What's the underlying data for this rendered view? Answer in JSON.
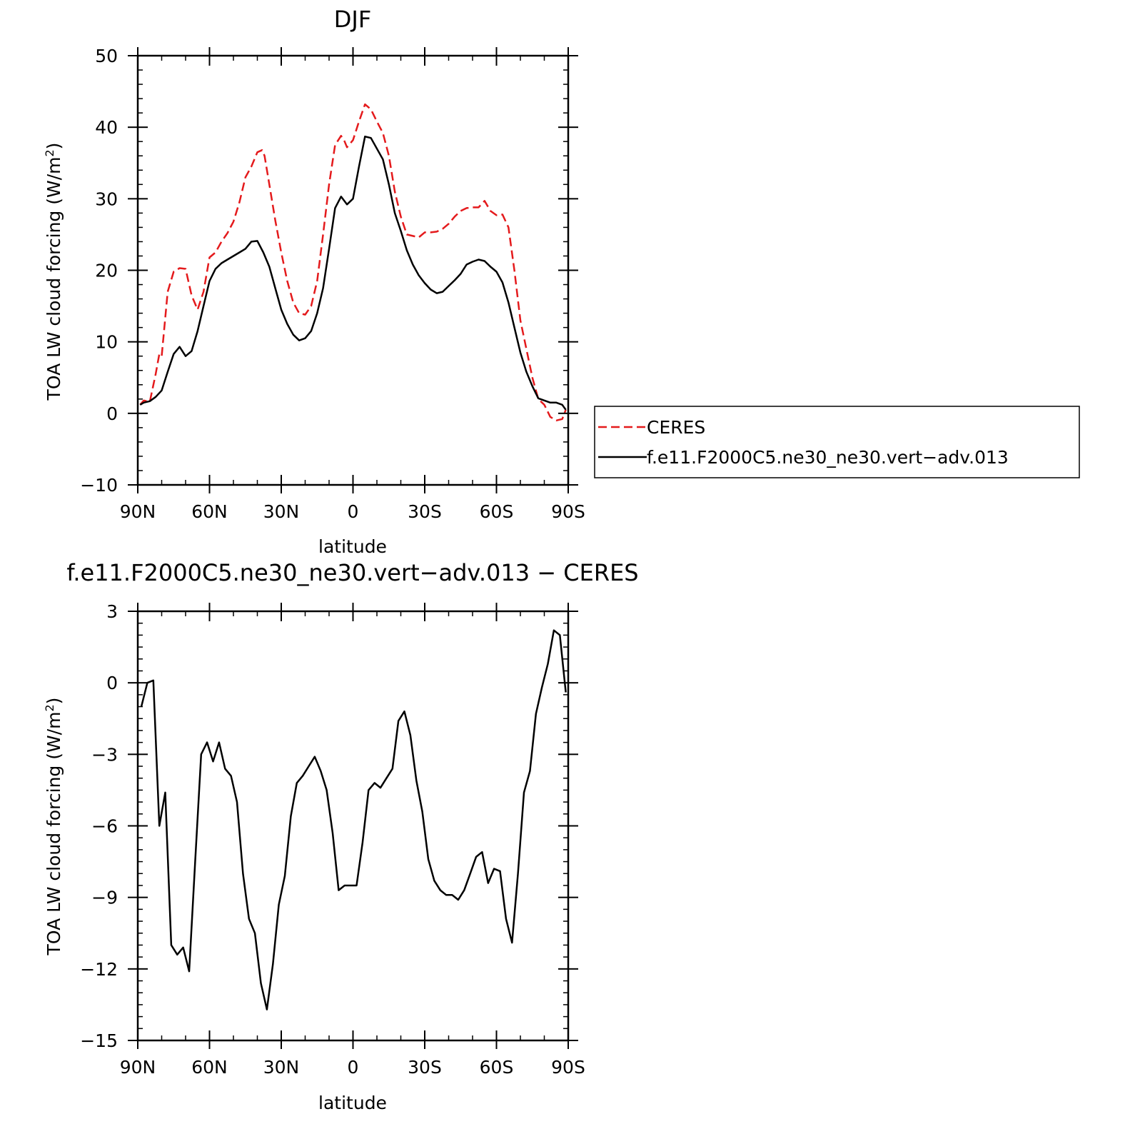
{
  "chart_data": [
    {
      "type": "line",
      "title": "DJF",
      "xlabel": "latitude",
      "ylabel": "TOA LW cloud forcing (W/m",
      "ylabel_sup": "2",
      "ylabel_close": ")",
      "xlim": [
        90,
        -90
      ],
      "ylim": [
        -10,
        50
      ],
      "x_ticks": [
        90,
        60,
        30,
        0,
        -30,
        -60,
        -90
      ],
      "x_tick_labels": [
        "90N",
        "60N",
        "30N",
        "0",
        "30S",
        "60S",
        "90S"
      ],
      "y_ticks": [
        -10,
        0,
        10,
        20,
        30,
        40,
        50
      ],
      "y_tick_labels": [
        "−10",
        "0",
        "10",
        "20",
        "30",
        "40",
        "50"
      ],
      "legend": {
        "placement": "right",
        "entries": [
          "CERES",
          "f.e11.F2000C5.ne30_ne30.vert−adv.013"
        ]
      },
      "series": [
        {
          "name": "CERES",
          "color": "#e41a1c",
          "dash": true,
          "x": [
            89,
            87.5,
            85,
            82.5,
            81,
            80,
            77.5,
            75,
            72.5,
            70,
            67.5,
            65,
            62.5,
            60,
            57.5,
            55,
            52.5,
            50,
            47.5,
            45,
            42.5,
            40,
            38,
            37,
            35,
            32.5,
            30,
            27.5,
            25,
            22.5,
            20,
            17.5,
            15,
            12.5,
            10,
            7.5,
            5,
            3.5,
            2.5,
            0,
            -2.5,
            -5,
            -7.5,
            -10,
            -12.5,
            -15,
            -17.5,
            -20,
            -22.5,
            -25,
            -27.5,
            -30,
            -32.5,
            -35,
            -37.5,
            -40,
            -42.5,
            -45,
            -47.5,
            -50,
            -52.5,
            -55,
            -57.5,
            -60,
            -62.5,
            -65,
            -67.5,
            -70,
            -72.5,
            -75,
            -77.5,
            -80,
            -82.5,
            -85,
            -87.5,
            -89
          ],
          "y": [
            1.2,
            1.8,
            1.6,
            5.5,
            8.3,
            8.0,
            17.0,
            19.8,
            20.3,
            20.2,
            16.5,
            14.5,
            17.0,
            21.8,
            22.5,
            24.0,
            25.2,
            26.8,
            29.5,
            33.0,
            34.5,
            36.5,
            36.8,
            36.0,
            32.0,
            27.0,
            22.5,
            18.5,
            15.5,
            14.0,
            13.8,
            15.0,
            18.5,
            25.0,
            32.0,
            37.5,
            38.8,
            38.0,
            37.2,
            38.2,
            40.8,
            43.2,
            42.5,
            40.8,
            39.2,
            36.0,
            31.0,
            27.5,
            25.0,
            24.8,
            24.6,
            25.3,
            25.3,
            25.4,
            25.8,
            26.5,
            27.5,
            28.3,
            28.7,
            28.8,
            28.8,
            29.7,
            28.3,
            27.7,
            27.8,
            26.0,
            20.0,
            13.0,
            9.0,
            5.0,
            2.0,
            1.2,
            -0.5,
            -1.0,
            -0.8,
            0.5
          ]
        },
        {
          "name": "f.e11.F2000C5.ne30_ne30.vert−adv.013",
          "color": "#000000",
          "dash": false,
          "x": [
            89,
            87.5,
            85,
            82.5,
            80,
            77.5,
            75,
            72.5,
            70,
            67.5,
            65,
            62.5,
            60,
            57.5,
            55,
            52.5,
            50,
            47.5,
            45,
            42.5,
            40,
            37.5,
            35,
            32.5,
            30,
            27.5,
            25,
            22.5,
            20,
            17.5,
            15,
            12.5,
            10,
            7.5,
            5,
            2.5,
            0,
            -2.5,
            -5,
            -7.5,
            -10,
            -12.5,
            -15,
            -17.5,
            -20,
            -22.5,
            -25,
            -27.5,
            -30,
            -32.5,
            -35,
            -37.5,
            -40,
            -42.5,
            -45,
            -47.5,
            -50,
            -52.5,
            -55,
            -57.5,
            -60,
            -62.5,
            -65,
            -67.5,
            -70,
            -72.5,
            -75,
            -77.5,
            -80,
            -82.5,
            -85,
            -87.5,
            -89
          ],
          "y": [
            1.2,
            1.5,
            1.7,
            2.3,
            3.2,
            5.8,
            8.3,
            9.3,
            8.0,
            8.7,
            11.5,
            15.0,
            18.5,
            20.2,
            21.0,
            21.5,
            22.0,
            22.5,
            23.0,
            24.0,
            24.1,
            22.5,
            20.5,
            17.5,
            14.5,
            12.5,
            11.0,
            10.2,
            10.5,
            11.5,
            14.0,
            17.5,
            23.0,
            28.7,
            30.3,
            29.2,
            30.0,
            34.5,
            38.7,
            38.5,
            37.0,
            35.5,
            32.0,
            28.0,
            25.5,
            22.8,
            20.8,
            19.3,
            18.2,
            17.3,
            16.8,
            17.0,
            17.8,
            18.6,
            19.5,
            20.8,
            21.2,
            21.5,
            21.3,
            20.5,
            19.8,
            18.3,
            15.5,
            12.0,
            8.5,
            5.8,
            3.8,
            2.1,
            1.8,
            1.5,
            1.5,
            1.2,
            0.5
          ]
        }
      ]
    },
    {
      "type": "line",
      "title": "f.e11.F2000C5.ne30_ne30.vert−adv.013 − CERES",
      "xlabel": "latitude",
      "ylabel": "TOA LW cloud forcing (W/m",
      "ylabel_sup": "2",
      "ylabel_close": ")",
      "xlim": [
        90,
        -90
      ],
      "ylim": [
        -15,
        3
      ],
      "x_ticks": [
        90,
        60,
        30,
        0,
        -30,
        -60,
        -90
      ],
      "x_tick_labels": [
        "90N",
        "60N",
        "30N",
        "0",
        "30S",
        "60S",
        "90S"
      ],
      "y_ticks": [
        -15,
        -12,
        -9,
        -6,
        -3,
        0,
        3
      ],
      "y_tick_labels": [
        "−15",
        "−12",
        "−9",
        "−6",
        "−3",
        "0",
        "3"
      ],
      "series": [
        {
          "color": "#000000",
          "dash": false,
          "x": [
            88.5,
            86,
            83.5,
            81,
            78.5,
            76,
            73.5,
            71,
            68.5,
            66,
            63.5,
            61,
            58.5,
            56,
            53.5,
            51,
            48.5,
            46,
            43.5,
            41,
            38.5,
            36,
            33.5,
            31,
            28.5,
            26,
            23.5,
            21,
            18.5,
            16,
            13.5,
            11,
            8.5,
            6,
            3.5,
            1,
            -1.5,
            -4,
            -6.5,
            -9,
            -11.5,
            -14,
            -16.5,
            -19,
            -21.5,
            -24,
            -26.5,
            -29,
            -31.5,
            -34,
            -36.5,
            -39,
            -41.5,
            -44,
            -46.5,
            -49,
            -51.5,
            -54,
            -56.5,
            -59,
            -61.5,
            -64,
            -66.5,
            -69,
            -71.5,
            -74,
            -76.5,
            -79,
            -81.5,
            -84,
            -86.5,
            -89
          ],
          "y": [
            -1.0,
            0.0,
            0.1,
            -6.0,
            -4.6,
            -11.0,
            -11.4,
            -11.1,
            -12.1,
            -7.5,
            -3.0,
            -2.5,
            -3.3,
            -2.5,
            -3.6,
            -3.9,
            -5.0,
            -8.0,
            -9.9,
            -10.5,
            -12.6,
            -13.7,
            -11.8,
            -9.3,
            -8.1,
            -5.6,
            -4.2,
            -3.9,
            -3.5,
            -3.1,
            -3.7,
            -4.5,
            -6.3,
            -8.7,
            -8.5,
            -8.5,
            -8.5,
            -6.7,
            -4.5,
            -4.2,
            -4.4,
            -4.0,
            -3.6,
            -1.6,
            -1.2,
            -2.2,
            -4.1,
            -5.4,
            -7.4,
            -8.3,
            -8.7,
            -8.9,
            -8.9,
            -9.1,
            -8.7,
            -8.0,
            -7.3,
            -7.1,
            -8.4,
            -7.8,
            -7.9,
            -9.9,
            -10.9,
            -8.0,
            -4.6,
            -3.7,
            -1.3,
            -0.2,
            0.8,
            2.2,
            2.0,
            -0.4
          ]
        }
      ]
    }
  ]
}
